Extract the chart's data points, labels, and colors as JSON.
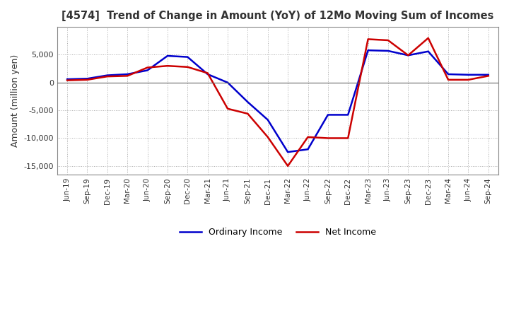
{
  "title": "[4574]  Trend of Change in Amount (YoY) of 12Mo Moving Sum of Incomes",
  "ylabel": "Amount (million yen)",
  "ylim": [
    -16500,
    10000
  ],
  "yticks": [
    -15000,
    -10000,
    -5000,
    0,
    5000
  ],
  "legend": [
    "Ordinary Income",
    "Net Income"
  ],
  "line_colors": [
    "#0000cc",
    "#cc0000"
  ],
  "x_labels": [
    "Jun-19",
    "Sep-19",
    "Dec-19",
    "Mar-20",
    "Jun-20",
    "Sep-20",
    "Dec-20",
    "Mar-21",
    "Jun-21",
    "Sep-21",
    "Dec-21",
    "Mar-22",
    "Jun-22",
    "Sep-22",
    "Dec-22",
    "Mar-23",
    "Jun-23",
    "Sep-23",
    "Dec-23",
    "Mar-24",
    "Jun-24",
    "Sep-24"
  ],
  "ordinary_income": [
    600,
    700,
    1300,
    1500,
    2200,
    4800,
    4600,
    1500,
    0,
    -3500,
    -6700,
    -12500,
    -12000,
    -5800,
    -5800,
    5800,
    5700,
    4900,
    5600,
    1500,
    1400,
    1400
  ],
  "net_income": [
    400,
    500,
    1100,
    1200,
    2700,
    3000,
    2800,
    1700,
    -4700,
    -5600,
    -9800,
    -15000,
    -9800,
    -10000,
    -10000,
    7800,
    7600,
    4900,
    8000,
    500,
    500,
    1200
  ],
  "background_color": "#ffffff",
  "grid_color": "#aaaaaa",
  "grid_style": "dotted"
}
